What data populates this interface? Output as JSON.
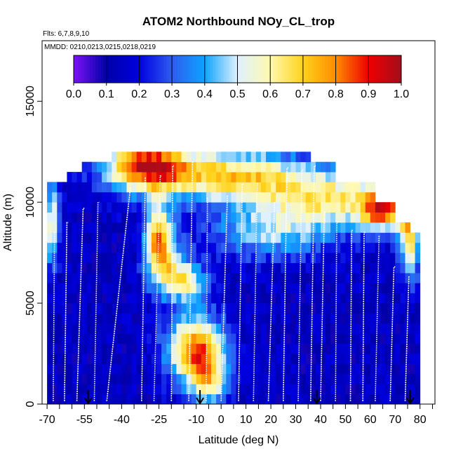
{
  "chart_data": {
    "type": "heatmap",
    "title": "ATOM2 Northbound NOy_CL_trop",
    "subtitle_flights": "Flts: 6,7,8,9,10",
    "subtitle_dates": "MMDD: 0210,0213,0215,0218,0219",
    "xlabel": "Latitude (deg N)",
    "ylabel": "Altitude (m)",
    "x_tick_labels": [
      "-70",
      "-55",
      "-40",
      "-25",
      "-10",
      "0",
      "10",
      "20",
      "30",
      "40",
      "50",
      "60",
      "70",
      "80"
    ],
    "x_ticks_minor": [
      -65,
      -60,
      -50,
      -45,
      -35,
      -30,
      -20,
      -15,
      -5,
      5,
      15,
      25,
      35,
      45,
      55,
      65,
      75,
      85
    ],
    "xlim": [
      -72,
      86
    ],
    "y_ticks": [
      0,
      5000,
      10000,
      15000
    ],
    "y_tick_labels": [
      "0",
      "5000",
      "10000",
      "15000"
    ],
    "ylim": [
      0,
      18000
    ],
    "colorbar": {
      "ticks": [
        0.0,
        0.1,
        0.2,
        0.3,
        0.4,
        0.5,
        0.6,
        0.7,
        0.8,
        0.9,
        1.0
      ],
      "tick_labels": [
        "0.0",
        "0.1",
        "0.2",
        "0.3",
        "0.4",
        "0.5",
        "0.6",
        "0.7",
        "0.8",
        "0.9",
        "1.0"
      ],
      "min": 0.0,
      "max": 1.0,
      "colors": [
        "#7d12f5",
        "#0000a8",
        "#0000e0",
        "#2e5cf0",
        "#0ea4ff",
        "#dff0ff",
        "#fff9b0",
        "#ffd21a",
        "#ff8c00",
        "#ee0000",
        "#a50d1d"
      ]
    },
    "descent_arrows_lat": [
      -53.5,
      -8.5,
      38.5,
      76
    ]
  }
}
